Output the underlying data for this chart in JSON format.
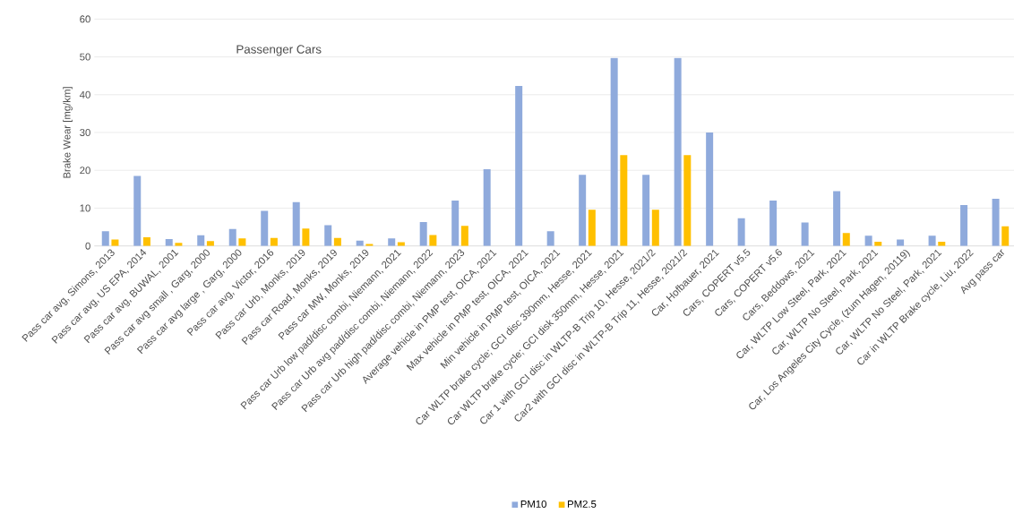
{
  "chart_data": {
    "type": "bar",
    "title": "Passenger Cars",
    "ylabel": "Brake Wear [mg/km]",
    "categories": [
      "Pass car avg, Simons, 2013",
      "Pass car avg, US EPA, 2014",
      "Pass car avg, BUWAL, 2001",
      "Pass car avg small , Garg, 2000",
      "Pass car avg large , Garg, 2000",
      "Pass car avg, Victor, 2016",
      "Pass car Urb, Monks, 2019",
      "Pass car Road, Monks, 2019",
      "Pass car MW, Monks, 2019",
      "Pass car Urb low pad/disc combi, Niemann, 2021",
      "Pass car Urb avg pad/disc combi, Niemann, 2022",
      "Pass car Urb high pad/disc combi, Niemann, 2023",
      "Average vehicle in PMP test, OICA, 2021",
      "Max vehicle in PMP test, OICA, 2021",
      "Min vehicle in PMP test, OICA, 2021",
      "Car WLTP brake cycle; GCI disc 390mm, Hesse, 2021",
      "Car WLTP brake cycle; GCI disk 350mm, Hesse, 2021",
      "Car 1 with GCI disc in WLTP-B Trip 10, Hesse, 2021/2",
      "Car2 with GCI disc in WLTP-B Trip 11, Hesse, 2021/2",
      "Car, Hofbauer, 2021",
      "Cars, COPERT v5.5",
      "Cars, COPERT v5.6",
      "Cars, Beddows, 2021",
      "Car, WLTP Low Steel, Park, 2021",
      "Car, WLTP No Steel, Park, 2021",
      "Car, Los Angeles City Cycle, (zum Hagen, 20119)",
      "Car, WLTP No Steel, Park, 2021",
      "Car in WLTP Brake cycle, Liu, 2022",
      "Avg pass car"
    ],
    "series": [
      {
        "name": "PM10",
        "color": "#8faadc",
        "values": [
          3.9,
          18.5,
          1.8,
          2.8,
          4.5,
          9.3,
          11.6,
          5.5,
          1.4,
          2.0,
          6.3,
          12.0,
          20.3,
          42.3,
          3.9,
          18.8,
          49.7,
          18.8,
          49.7,
          30.0,
          7.3,
          12.0,
          6.2,
          14.5,
          2.7,
          1.7,
          2.7,
          10.8,
          12.5
        ]
      },
      {
        "name": "PM2.5",
        "color": "#ffc000",
        "values": [
          1.7,
          2.3,
          0.8,
          1.3,
          2.0,
          2.1,
          4.6,
          2.1,
          0.5,
          1.0,
          2.9,
          5.3,
          null,
          null,
          null,
          9.6,
          24.0,
          9.6,
          24.0,
          null,
          null,
          null,
          null,
          3.4,
          1.1,
          null,
          1.1,
          null,
          5.2
        ]
      }
    ],
    "ylim": [
      0,
      60
    ],
    "yticks": [
      0,
      10,
      20,
      30,
      40,
      50,
      60
    ],
    "grid": "y",
    "legend": "bottom"
  }
}
